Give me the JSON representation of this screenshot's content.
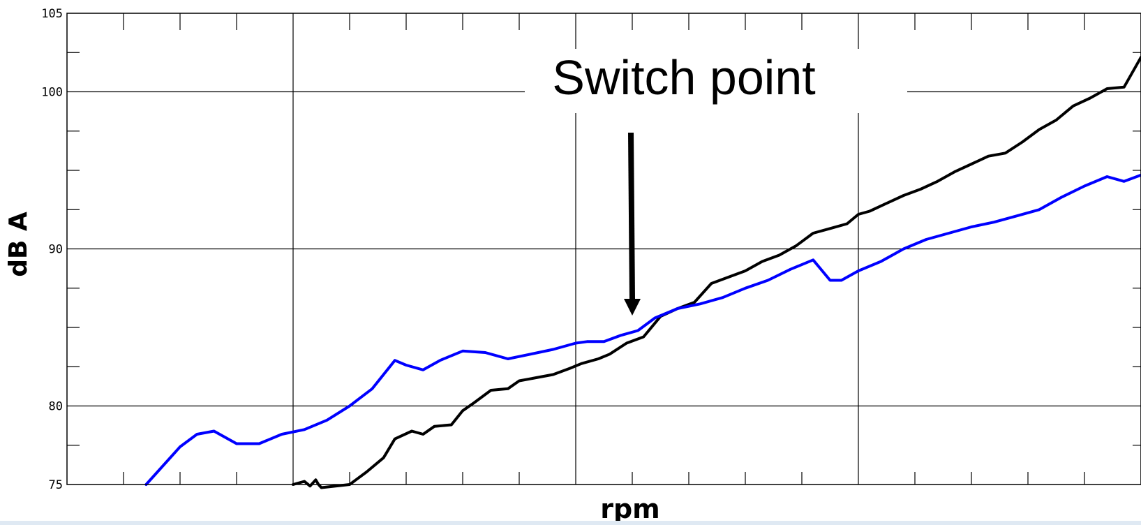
{
  "chart_data": {
    "type": "line",
    "title": "",
    "xlabel": "rpm",
    "ylabel": "dB A",
    "xlim": [
      0,
      19
    ],
    "ylim": [
      75,
      105
    ],
    "y_ticks": [
      75,
      80,
      90,
      100,
      105
    ],
    "y_tick_labels": [
      "75",
      "80",
      "90",
      "100",
      "105"
    ],
    "grid": true,
    "annotation": {
      "text": "Switch point",
      "x": 10
    },
    "colors": {
      "series_black": "#000000",
      "series_blue": "#0000ff",
      "grid": "#000000",
      "background": "#ffffff"
    },
    "series": [
      {
        "color": "#000000",
        "x": [
          4,
          4.2,
          4.3,
          4.4,
          4.45,
          4.5,
          5.0,
          5.3,
          5.6,
          5.8,
          6.1,
          6.3,
          6.5,
          6.8,
          7.0,
          7.2,
          7.5,
          7.8,
          8.0,
          8.3,
          8.6,
          8.9,
          9.1,
          9.4,
          9.6,
          9.9,
          10.2,
          10.5,
          10.8,
          11.1,
          11.4,
          11.7,
          12.0,
          12.3,
          12.6,
          12.9,
          13.2,
          13.5,
          13.8,
          14.0,
          14.2,
          14.5,
          14.8,
          15.1,
          15.4,
          15.7,
          16.0,
          16.3,
          16.6,
          16.9,
          17.2,
          17.5,
          17.8,
          18.1,
          18.4,
          18.7,
          19.0
        ],
        "y": [
          75.0,
          75.2,
          74.9,
          75.3,
          75.0,
          74.8,
          75.0,
          75.8,
          76.7,
          77.9,
          78.4,
          78.2,
          78.7,
          78.8,
          79.7,
          80.2,
          81.0,
          81.1,
          81.6,
          81.8,
          82.0,
          82.4,
          82.7,
          83.0,
          83.3,
          84.0,
          84.4,
          85.7,
          86.2,
          86.6,
          87.8,
          88.2,
          88.6,
          89.2,
          89.6,
          90.2,
          91.0,
          91.3,
          91.6,
          92.2,
          92.4,
          92.9,
          93.4,
          93.8,
          94.3,
          94.9,
          95.4,
          95.9,
          96.1,
          96.8,
          97.6,
          98.2,
          99.1,
          99.6,
          100.2,
          100.3,
          102.2
        ]
      },
      {
        "color": "#0000ff",
        "x": [
          1.4,
          1.6,
          2.0,
          2.3,
          2.6,
          3.0,
          3.4,
          3.8,
          4.2,
          4.6,
          5.0,
          5.4,
          5.8,
          6.0,
          6.3,
          6.6,
          7.0,
          7.4,
          7.8,
          8.2,
          8.6,
          9.0,
          9.2,
          9.5,
          9.8,
          10.1,
          10.4,
          10.8,
          11.2,
          11.6,
          12.0,
          12.4,
          12.8,
          13.2,
          13.5,
          13.7,
          14.0,
          14.4,
          14.8,
          15.2,
          15.6,
          16.0,
          16.4,
          16.8,
          17.2,
          17.6,
          18.0,
          18.4,
          18.7,
          19.0
        ],
        "y": [
          75.0,
          75.8,
          77.4,
          78.2,
          78.4,
          77.6,
          77.6,
          78.2,
          78.5,
          79.1,
          80.0,
          81.1,
          82.9,
          82.6,
          82.3,
          82.9,
          83.5,
          83.4,
          83.0,
          83.3,
          83.6,
          84.0,
          84.1,
          84.1,
          84.5,
          84.8,
          85.6,
          86.2,
          86.5,
          86.9,
          87.5,
          88.0,
          88.7,
          89.3,
          88.0,
          88.0,
          88.6,
          89.2,
          90.0,
          90.6,
          91.0,
          91.4,
          91.7,
          92.1,
          92.5,
          93.3,
          94.0,
          94.6,
          94.3,
          94.7
        ]
      }
    ]
  }
}
